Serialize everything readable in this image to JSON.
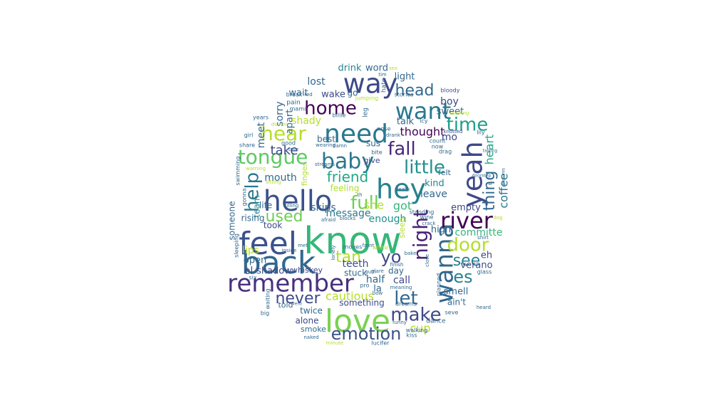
{
  "wordcloud": {
    "shape": "circle",
    "background": "#ffffff",
    "palette": "viridis",
    "words": [
      {
        "text": "know",
        "color": "#35b779"
      },
      {
        "text": "love",
        "color": "#7ad151"
      },
      {
        "text": "back",
        "color": "#31688e"
      },
      {
        "text": "hello",
        "color": "#3b528b"
      },
      {
        "text": "hey",
        "color": "#26828e"
      },
      {
        "text": "feel",
        "color": "#3b528b"
      },
      {
        "text": "way",
        "color": "#3e4989"
      },
      {
        "text": "need",
        "color": "#2a788e"
      },
      {
        "text": "want",
        "color": "#2a788e"
      },
      {
        "text": "remember",
        "color": "#46327e"
      },
      {
        "text": "yeah",
        "color": "#3e4989"
      },
      {
        "text": "wanna",
        "color": "#31688e"
      },
      {
        "text": "baby",
        "color": "#2a788e"
      },
      {
        "text": "tongue",
        "color": "#5ec962"
      },
      {
        "text": "river",
        "color": "#440154"
      },
      {
        "text": "hear",
        "color": "#b5de2b"
      },
      {
        "text": "home",
        "color": "#440154"
      },
      {
        "text": "little",
        "color": "#21918c"
      },
      {
        "text": "fall",
        "color": "#482878"
      },
      {
        "text": "time",
        "color": "#1f9e89"
      },
      {
        "text": "full",
        "color": "#6ece58"
      },
      {
        "text": "night",
        "color": "#482475"
      },
      {
        "text": "door",
        "color": "#b5de2b"
      },
      {
        "text": "help",
        "color": "#2a788e"
      },
      {
        "text": "emotion",
        "color": "#3b528b"
      },
      {
        "text": "make",
        "color": "#3e4989"
      },
      {
        "text": "let",
        "color": "#31688e"
      },
      {
        "text": "yo",
        "color": "#3e4989"
      },
      {
        "text": "es",
        "color": "#26828e"
      },
      {
        "text": "never",
        "color": "#3e4989"
      },
      {
        "text": "used",
        "color": "#6ece58"
      },
      {
        "text": "head",
        "color": "#31688e"
      },
      {
        "text": "friend",
        "color": "#22a884"
      },
      {
        "text": "tan",
        "color": "#b5de2b"
      },
      {
        "text": "see",
        "color": "#26828e"
      },
      {
        "text": "thing",
        "color": "#31688e"
      },
      {
        "text": "cautious",
        "color": "#b5de2b"
      },
      {
        "text": "she",
        "color": "#b5de2b"
      },
      {
        "text": "got",
        "color": "#35b779"
      },
      {
        "text": "coffee",
        "color": "#2a788e"
      },
      {
        "text": "heart",
        "color": "#22a884"
      },
      {
        "text": "cup",
        "color": "#b5de2b"
      },
      {
        "text": "thought",
        "color": "#440154"
      },
      {
        "text": "take",
        "color": "#3e4989"
      },
      {
        "text": "mouth",
        "color": "#31688e"
      },
      {
        "text": "skips",
        "color": "#31688e"
      },
      {
        "text": "enough",
        "color": "#21918c"
      },
      {
        "text": "message",
        "color": "#2a788e"
      },
      {
        "text": "feeling",
        "color": "#b5de2b"
      },
      {
        "text": "leave",
        "color": "#31688e"
      },
      {
        "text": "kind",
        "color": "#26828e"
      },
      {
        "text": "empty",
        "color": "#3e4989"
      },
      {
        "text": "high",
        "color": "#31688e"
      },
      {
        "text": "committe",
        "color": "#35b779"
      },
      {
        "text": "sweet",
        "color": "#31688e"
      },
      {
        "text": "talk",
        "color": "#31688e"
      },
      {
        "text": "boy",
        "color": "#3e4989"
      },
      {
        "text": "mo",
        "color": "#3e4989"
      },
      {
        "text": "lost",
        "color": "#31688e"
      },
      {
        "text": "light",
        "color": "#31688e"
      },
      {
        "text": "wait",
        "color": "#31688e"
      },
      {
        "text": "wake",
        "color": "#3e4989"
      },
      {
        "text": "go",
        "color": "#31688e"
      },
      {
        "text": "drink",
        "color": "#26828e"
      },
      {
        "text": "word",
        "color": "#31688e"
      },
      {
        "text": "sorry",
        "color": "#31688e"
      },
      {
        "text": "apart",
        "color": "#31688e"
      },
      {
        "text": "shady",
        "color": "#b5de2b"
      },
      {
        "text": "meet",
        "color": "#31688e"
      },
      {
        "text": "team",
        "color": "#26828e"
      },
      {
        "text": "lips",
        "color": "#b5de2b"
      },
      {
        "text": "open",
        "color": "#31688e"
      },
      {
        "text": "el",
        "color": "#3e4989"
      },
      {
        "text": "shadow",
        "color": "#3e4989"
      },
      {
        "text": "whiskey",
        "color": "#3e4989"
      },
      {
        "text": "teeth",
        "color": "#3e4989"
      },
      {
        "text": "stuck",
        "color": "#31688e"
      },
      {
        "text": "half",
        "color": "#31688e"
      },
      {
        "text": "call",
        "color": "#3e4989"
      },
      {
        "text": "day",
        "color": "#31688e"
      },
      {
        "text": "la",
        "color": "#31688e"
      },
      {
        "text": "verano",
        "color": "#3e4989"
      },
      {
        "text": "smell",
        "color": "#31688e"
      },
      {
        "text": "eh",
        "color": "#3e4989"
      },
      {
        "text": "ain't",
        "color": "#31688e"
      },
      {
        "text": "something",
        "color": "#3e4989"
      },
      {
        "text": "twice",
        "color": "#31688e"
      },
      {
        "text": "alone",
        "color": "#3e4989"
      },
      {
        "text": "told",
        "color": "#31688e"
      },
      {
        "text": "smoke",
        "color": "#31688e"
      },
      {
        "text": "took",
        "color": "#3e4989"
      },
      {
        "text": "rising",
        "color": "#31688e"
      },
      {
        "text": "life",
        "color": "#31688e"
      },
      {
        "text": "someone",
        "color": "#31688e"
      },
      {
        "text": "sus",
        "color": "#31688e"
      },
      {
        "text": "give",
        "color": "#3e4989"
      },
      {
        "text": "felt",
        "color": "#31688e"
      },
      {
        "text": "best",
        "color": "#31688e"
      },
      {
        "text": "finger",
        "color": "#b5de2b"
      },
      {
        "text": "sleep",
        "color": "#b5de2b"
      },
      {
        "text": "dance",
        "color": "#31688e"
      },
      {
        "text": "lucifer",
        "color": "#31688e"
      },
      {
        "text": "walking",
        "color": "#31688e"
      },
      {
        "text": "kiss",
        "color": "#31688e"
      },
      {
        "text": "dreams",
        "color": "#31688e"
      },
      {
        "text": "funny",
        "color": "#31688e"
      },
      {
        "text": "big",
        "color": "#31688e"
      },
      {
        "text": "six",
        "color": "#31688e"
      },
      {
        "text": "glass",
        "color": "#31688e"
      },
      {
        "text": "sleeping",
        "color": "#31688e"
      },
      {
        "text": "swimming",
        "color": "#31688e"
      },
      {
        "text": "waiting",
        "color": "#31688e"
      },
      {
        "text": "gonna",
        "color": "#31688e"
      },
      {
        "text": "warning",
        "color": "#b5de2b"
      },
      {
        "text": "sitting",
        "color": "#b5de2b"
      },
      {
        "text": "dinner",
        "color": "#b5de2b"
      },
      {
        "text": "years",
        "color": "#31688e"
      },
      {
        "text": "girl",
        "color": "#31688e"
      },
      {
        "text": "share",
        "color": "#31688e"
      },
      {
        "text": "good",
        "color": "#31688e"
      },
      {
        "text": "true",
        "color": "#31688e"
      },
      {
        "text": "break",
        "color": "#31688e"
      },
      {
        "text": "red",
        "color": "#31688e"
      },
      {
        "text": "pain",
        "color": "#31688e"
      },
      {
        "text": "mami",
        "color": "#31688e"
      },
      {
        "text": "billie",
        "color": "#31688e"
      },
      {
        "text": "jumping",
        "color": "#b5de2b"
      },
      {
        "text": "stories",
        "color": "#31688e"
      },
      {
        "text": "hate",
        "color": "#31688e"
      },
      {
        "text": "bloody",
        "color": "#3e4989"
      },
      {
        "text": "nothing",
        "color": "#b5de2b"
      },
      {
        "text": "icy",
        "color": "#31688e"
      },
      {
        "text": "knotted",
        "color": "#3e4989"
      },
      {
        "text": "lily",
        "color": "#31688e"
      },
      {
        "text": "talking",
        "color": "#31688e"
      },
      {
        "text": "count",
        "color": "#31688e"
      },
      {
        "text": "now",
        "color": "#31688e"
      },
      {
        "text": "drag",
        "color": "#31688e"
      },
      {
        "text": "bite",
        "color": "#31688e"
      },
      {
        "text": "drank",
        "color": "#31688e"
      },
      {
        "text": "wearing",
        "color": "#31688e"
      },
      {
        "text": "damn",
        "color": "#31688e"
      },
      {
        "text": "nose",
        "color": "#31688e"
      },
      {
        "text": "streams",
        "color": "#31688e"
      },
      {
        "text": "death",
        "color": "#31688e"
      },
      {
        "text": "standing",
        "color": "#31688e"
      },
      {
        "text": "wine",
        "color": "#31688e"
      },
      {
        "text": "crack",
        "color": "#31688e"
      },
      {
        "text": "afraid",
        "color": "#31688e"
      },
      {
        "text": "blocks",
        "color": "#31688e"
      },
      {
        "text": "killing",
        "color": "#31688e"
      },
      {
        "text": "met",
        "color": "#31688e"
      },
      {
        "text": "moves",
        "color": "#31688e"
      },
      {
        "text": "front",
        "color": "#31688e"
      },
      {
        "text": "white",
        "color": "#b5de2b"
      },
      {
        "text": "lonely",
        "color": "#31688e"
      },
      {
        "text": "inside",
        "color": "#31688e"
      },
      {
        "text": "finish",
        "color": "#31688e"
      },
      {
        "text": "glare",
        "color": "#31688e"
      },
      {
        "text": "bow",
        "color": "#31688e"
      },
      {
        "text": "meaning",
        "color": "#31688e"
      },
      {
        "text": "minute",
        "color": "#b5de2b"
      },
      {
        "text": "naked",
        "color": "#31688e"
      },
      {
        "text": "seve",
        "color": "#31688e"
      },
      {
        "text": "heard",
        "color": "#31688e"
      },
      {
        "text": "shirt",
        "color": "#31688e"
      },
      {
        "text": "doorstep",
        "color": "#31688e"
      },
      {
        "text": "dog",
        "color": "#b5de2b"
      },
      {
        "text": "planned",
        "color": "#31688e"
      },
      {
        "text": "close",
        "color": "#31688e"
      },
      {
        "text": "bake",
        "color": "#31688e"
      },
      {
        "text": "verb",
        "color": "#31688e"
      },
      {
        "text": "gum",
        "color": "#31688e"
      },
      {
        "text": "pro",
        "color": "#31688e"
      },
      {
        "text": "th",
        "color": "#31688e"
      },
      {
        "text": "si",
        "color": "#31688e"
      },
      {
        "text": "leg",
        "color": "#31688e"
      },
      {
        "text": "pictures",
        "color": "#31688e"
      },
      {
        "text": "sex",
        "color": "#b5de2b"
      },
      {
        "text": "tim",
        "color": "#31688e"
      }
    ]
  }
}
